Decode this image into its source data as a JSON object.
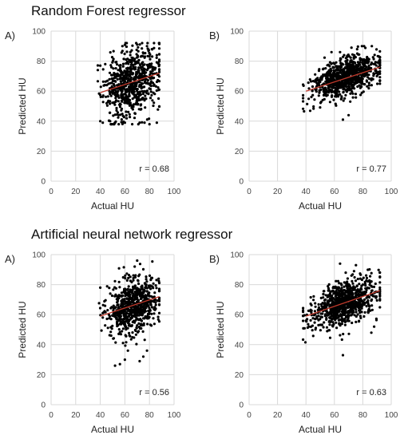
{
  "sections": [
    {
      "title": "Random Forest regressor"
    },
    {
      "title": "Artificial neural network regressor"
    }
  ],
  "colors": {
    "point": "#000000",
    "trendline": "#c0392b",
    "grid": "#d9d9d9",
    "axis_text": "#444444"
  },
  "chart_data": [
    {
      "type": "scatter",
      "panel_label": "A)",
      "xlabel": "Actual HU",
      "ylabel": "Predicted HU",
      "xlim": [
        0,
        100
      ],
      "ylim": [
        0,
        100
      ],
      "xticks": [
        0,
        20,
        40,
        60,
        80,
        100
      ],
      "yticks": [
        0,
        20,
        40,
        60,
        80,
        100
      ],
      "grid": true,
      "annotation": "r = 0.68",
      "trendline": {
        "x": [
          40,
          88
        ],
        "y": [
          59,
          72
        ]
      },
      "cloud": {
        "n": 700,
        "seed": 11,
        "x_mean": 65,
        "x_sd": 11,
        "x_range": [
          38,
          88
        ],
        "slope": 0.27,
        "intercept": 48,
        "noise_sd": 11,
        "y_range": [
          38,
          92
        ]
      },
      "points": [
        [
          40,
          40
        ],
        [
          42,
          39
        ],
        [
          48,
          40
        ],
        [
          52,
          39
        ],
        [
          55,
          38
        ],
        [
          60,
          39
        ],
        [
          66,
          38
        ],
        [
          72,
          39
        ],
        [
          76,
          39
        ],
        [
          80,
          38
        ],
        [
          86,
          39
        ],
        [
          58,
          90
        ],
        [
          70,
          91
        ],
        [
          74,
          92
        ],
        [
          78,
          90
        ],
        [
          82,
          88
        ],
        [
          40,
          77
        ],
        [
          44,
          78
        ],
        [
          86,
          84
        ]
      ]
    },
    {
      "type": "scatter",
      "panel_label": "B)",
      "xlabel": "Actual HU",
      "ylabel": "Predicted HU",
      "xlim": [
        0,
        100
      ],
      "ylim": [
        0,
        100
      ],
      "xticks": [
        0,
        20,
        40,
        60,
        80,
        100
      ],
      "yticks": [
        0,
        20,
        40,
        60,
        80,
        100
      ],
      "grid": true,
      "annotation": "r = 0.77",
      "trendline": {
        "x": [
          40,
          92
        ],
        "y": [
          60,
          76
        ]
      },
      "cloud": {
        "n": 850,
        "seed": 23,
        "x_mean": 67,
        "x_sd": 11,
        "x_range": [
          38,
          92
        ],
        "slope": 0.31,
        "intercept": 48,
        "noise_sd": 6,
        "y_range": [
          40,
          90
        ]
      },
      "points": [
        [
          66,
          41
        ],
        [
          70,
          44
        ],
        [
          58,
          86
        ],
        [
          64,
          86
        ],
        [
          72,
          89
        ],
        [
          76,
          88
        ],
        [
          88,
          78
        ],
        [
          91,
          76
        ]
      ]
    },
    {
      "type": "scatter",
      "panel_label": "A)",
      "xlabel": "Actual HU",
      "ylabel": "Predicted HU",
      "xlim": [
        0,
        100
      ],
      "ylim": [
        0,
        100
      ],
      "xticks": [
        0,
        20,
        40,
        60,
        80,
        100
      ],
      "yticks": [
        0,
        20,
        40,
        60,
        80,
        100
      ],
      "grid": true,
      "annotation": "r = 0.56",
      "trendline": {
        "x": [
          40,
          88
        ],
        "y": [
          59,
          72
        ]
      },
      "cloud": {
        "n": 700,
        "seed": 37,
        "x_mean": 67,
        "x_sd": 10,
        "x_range": [
          39,
          88
        ],
        "slope": 0.27,
        "intercept": 48,
        "noise_sd": 9,
        "y_range": [
          25,
          96
        ]
      },
      "points": [
        [
          52,
          26
        ],
        [
          56,
          27
        ],
        [
          60,
          30
        ],
        [
          72,
          29
        ],
        [
          75,
          32
        ],
        [
          70,
          96
        ],
        [
          68,
          92
        ],
        [
          40,
          78
        ],
        [
          42,
          61
        ],
        [
          46,
          63
        ],
        [
          78,
          36
        ]
      ]
    },
    {
      "type": "scatter",
      "panel_label": "B)",
      "xlabel": "Actual HU",
      "ylabel": "Predicted HU",
      "xlim": [
        0,
        100
      ],
      "ylim": [
        0,
        100
      ],
      "xticks": [
        0,
        20,
        40,
        60,
        80,
        100
      ],
      "yticks": [
        0,
        20,
        40,
        60,
        80,
        100
      ],
      "grid": true,
      "annotation": "r = 0.63",
      "trendline": {
        "x": [
          40,
          92
        ],
        "y": [
          59,
          76
        ]
      },
      "cloud": {
        "n": 850,
        "seed": 53,
        "x_mean": 67,
        "x_sd": 11,
        "x_range": [
          38,
          92
        ],
        "slope": 0.31,
        "intercept": 47,
        "noise_sd": 7,
        "y_range": [
          33,
          94
        ]
      },
      "points": [
        [
          66,
          33
        ],
        [
          64,
          94
        ],
        [
          68,
          88
        ],
        [
          72,
          86
        ],
        [
          86,
          48
        ],
        [
          88,
          52
        ],
        [
          40,
          56
        ],
        [
          42,
          52
        ]
      ]
    }
  ]
}
